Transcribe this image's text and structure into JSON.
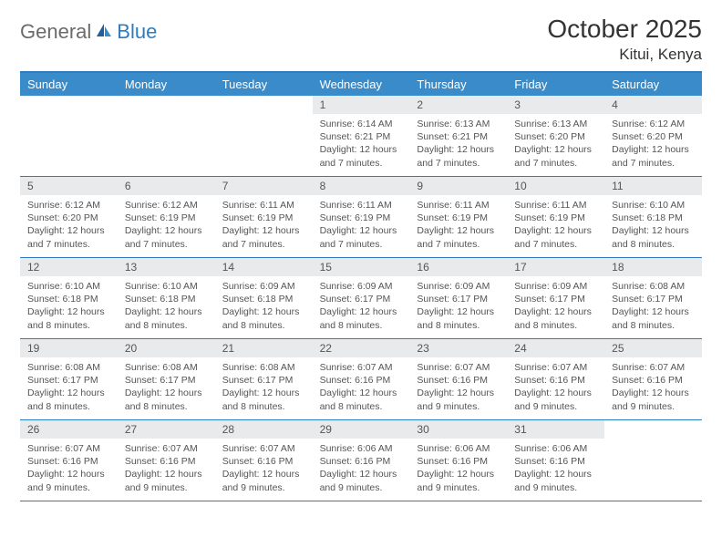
{
  "logo": {
    "part1": "General",
    "part2": "Blue"
  },
  "title": "October 2025",
  "location": "Kitui, Kenya",
  "colors": {
    "header_bg": "#3a8bc9",
    "border": "#2d7cc1",
    "date_bg": "#e9eaec",
    "text": "#555555"
  },
  "day_names": [
    "Sunday",
    "Monday",
    "Tuesday",
    "Wednesday",
    "Thursday",
    "Friday",
    "Saturday"
  ],
  "weeks": [
    [
      {
        "n": "",
        "sr": "",
        "ss": "",
        "dl": ""
      },
      {
        "n": "",
        "sr": "",
        "ss": "",
        "dl": ""
      },
      {
        "n": "",
        "sr": "",
        "ss": "",
        "dl": ""
      },
      {
        "n": "1",
        "sr": "Sunrise: 6:14 AM",
        "ss": "Sunset: 6:21 PM",
        "dl": "Daylight: 12 hours and 7 minutes."
      },
      {
        "n": "2",
        "sr": "Sunrise: 6:13 AM",
        "ss": "Sunset: 6:21 PM",
        "dl": "Daylight: 12 hours and 7 minutes."
      },
      {
        "n": "3",
        "sr": "Sunrise: 6:13 AM",
        "ss": "Sunset: 6:20 PM",
        "dl": "Daylight: 12 hours and 7 minutes."
      },
      {
        "n": "4",
        "sr": "Sunrise: 6:12 AM",
        "ss": "Sunset: 6:20 PM",
        "dl": "Daylight: 12 hours and 7 minutes."
      }
    ],
    [
      {
        "n": "5",
        "sr": "Sunrise: 6:12 AM",
        "ss": "Sunset: 6:20 PM",
        "dl": "Daylight: 12 hours and 7 minutes."
      },
      {
        "n": "6",
        "sr": "Sunrise: 6:12 AM",
        "ss": "Sunset: 6:19 PM",
        "dl": "Daylight: 12 hours and 7 minutes."
      },
      {
        "n": "7",
        "sr": "Sunrise: 6:11 AM",
        "ss": "Sunset: 6:19 PM",
        "dl": "Daylight: 12 hours and 7 minutes."
      },
      {
        "n": "8",
        "sr": "Sunrise: 6:11 AM",
        "ss": "Sunset: 6:19 PM",
        "dl": "Daylight: 12 hours and 7 minutes."
      },
      {
        "n": "9",
        "sr": "Sunrise: 6:11 AM",
        "ss": "Sunset: 6:19 PM",
        "dl": "Daylight: 12 hours and 7 minutes."
      },
      {
        "n": "10",
        "sr": "Sunrise: 6:11 AM",
        "ss": "Sunset: 6:19 PM",
        "dl": "Daylight: 12 hours and 7 minutes."
      },
      {
        "n": "11",
        "sr": "Sunrise: 6:10 AM",
        "ss": "Sunset: 6:18 PM",
        "dl": "Daylight: 12 hours and 8 minutes."
      }
    ],
    [
      {
        "n": "12",
        "sr": "Sunrise: 6:10 AM",
        "ss": "Sunset: 6:18 PM",
        "dl": "Daylight: 12 hours and 8 minutes."
      },
      {
        "n": "13",
        "sr": "Sunrise: 6:10 AM",
        "ss": "Sunset: 6:18 PM",
        "dl": "Daylight: 12 hours and 8 minutes."
      },
      {
        "n": "14",
        "sr": "Sunrise: 6:09 AM",
        "ss": "Sunset: 6:18 PM",
        "dl": "Daylight: 12 hours and 8 minutes."
      },
      {
        "n": "15",
        "sr": "Sunrise: 6:09 AM",
        "ss": "Sunset: 6:17 PM",
        "dl": "Daylight: 12 hours and 8 minutes."
      },
      {
        "n": "16",
        "sr": "Sunrise: 6:09 AM",
        "ss": "Sunset: 6:17 PM",
        "dl": "Daylight: 12 hours and 8 minutes."
      },
      {
        "n": "17",
        "sr": "Sunrise: 6:09 AM",
        "ss": "Sunset: 6:17 PM",
        "dl": "Daylight: 12 hours and 8 minutes."
      },
      {
        "n": "18",
        "sr": "Sunrise: 6:08 AM",
        "ss": "Sunset: 6:17 PM",
        "dl": "Daylight: 12 hours and 8 minutes."
      }
    ],
    [
      {
        "n": "19",
        "sr": "Sunrise: 6:08 AM",
        "ss": "Sunset: 6:17 PM",
        "dl": "Daylight: 12 hours and 8 minutes."
      },
      {
        "n": "20",
        "sr": "Sunrise: 6:08 AM",
        "ss": "Sunset: 6:17 PM",
        "dl": "Daylight: 12 hours and 8 minutes."
      },
      {
        "n": "21",
        "sr": "Sunrise: 6:08 AM",
        "ss": "Sunset: 6:17 PM",
        "dl": "Daylight: 12 hours and 8 minutes."
      },
      {
        "n": "22",
        "sr": "Sunrise: 6:07 AM",
        "ss": "Sunset: 6:16 PM",
        "dl": "Daylight: 12 hours and 8 minutes."
      },
      {
        "n": "23",
        "sr": "Sunrise: 6:07 AM",
        "ss": "Sunset: 6:16 PM",
        "dl": "Daylight: 12 hours and 9 minutes."
      },
      {
        "n": "24",
        "sr": "Sunrise: 6:07 AM",
        "ss": "Sunset: 6:16 PM",
        "dl": "Daylight: 12 hours and 9 minutes."
      },
      {
        "n": "25",
        "sr": "Sunrise: 6:07 AM",
        "ss": "Sunset: 6:16 PM",
        "dl": "Daylight: 12 hours and 9 minutes."
      }
    ],
    [
      {
        "n": "26",
        "sr": "Sunrise: 6:07 AM",
        "ss": "Sunset: 6:16 PM",
        "dl": "Daylight: 12 hours and 9 minutes."
      },
      {
        "n": "27",
        "sr": "Sunrise: 6:07 AM",
        "ss": "Sunset: 6:16 PM",
        "dl": "Daylight: 12 hours and 9 minutes."
      },
      {
        "n": "28",
        "sr": "Sunrise: 6:07 AM",
        "ss": "Sunset: 6:16 PM",
        "dl": "Daylight: 12 hours and 9 minutes."
      },
      {
        "n": "29",
        "sr": "Sunrise: 6:06 AM",
        "ss": "Sunset: 6:16 PM",
        "dl": "Daylight: 12 hours and 9 minutes."
      },
      {
        "n": "30",
        "sr": "Sunrise: 6:06 AM",
        "ss": "Sunset: 6:16 PM",
        "dl": "Daylight: 12 hours and 9 minutes."
      },
      {
        "n": "31",
        "sr": "Sunrise: 6:06 AM",
        "ss": "Sunset: 6:16 PM",
        "dl": "Daylight: 12 hours and 9 minutes."
      },
      {
        "n": "",
        "sr": "",
        "ss": "",
        "dl": ""
      }
    ]
  ]
}
